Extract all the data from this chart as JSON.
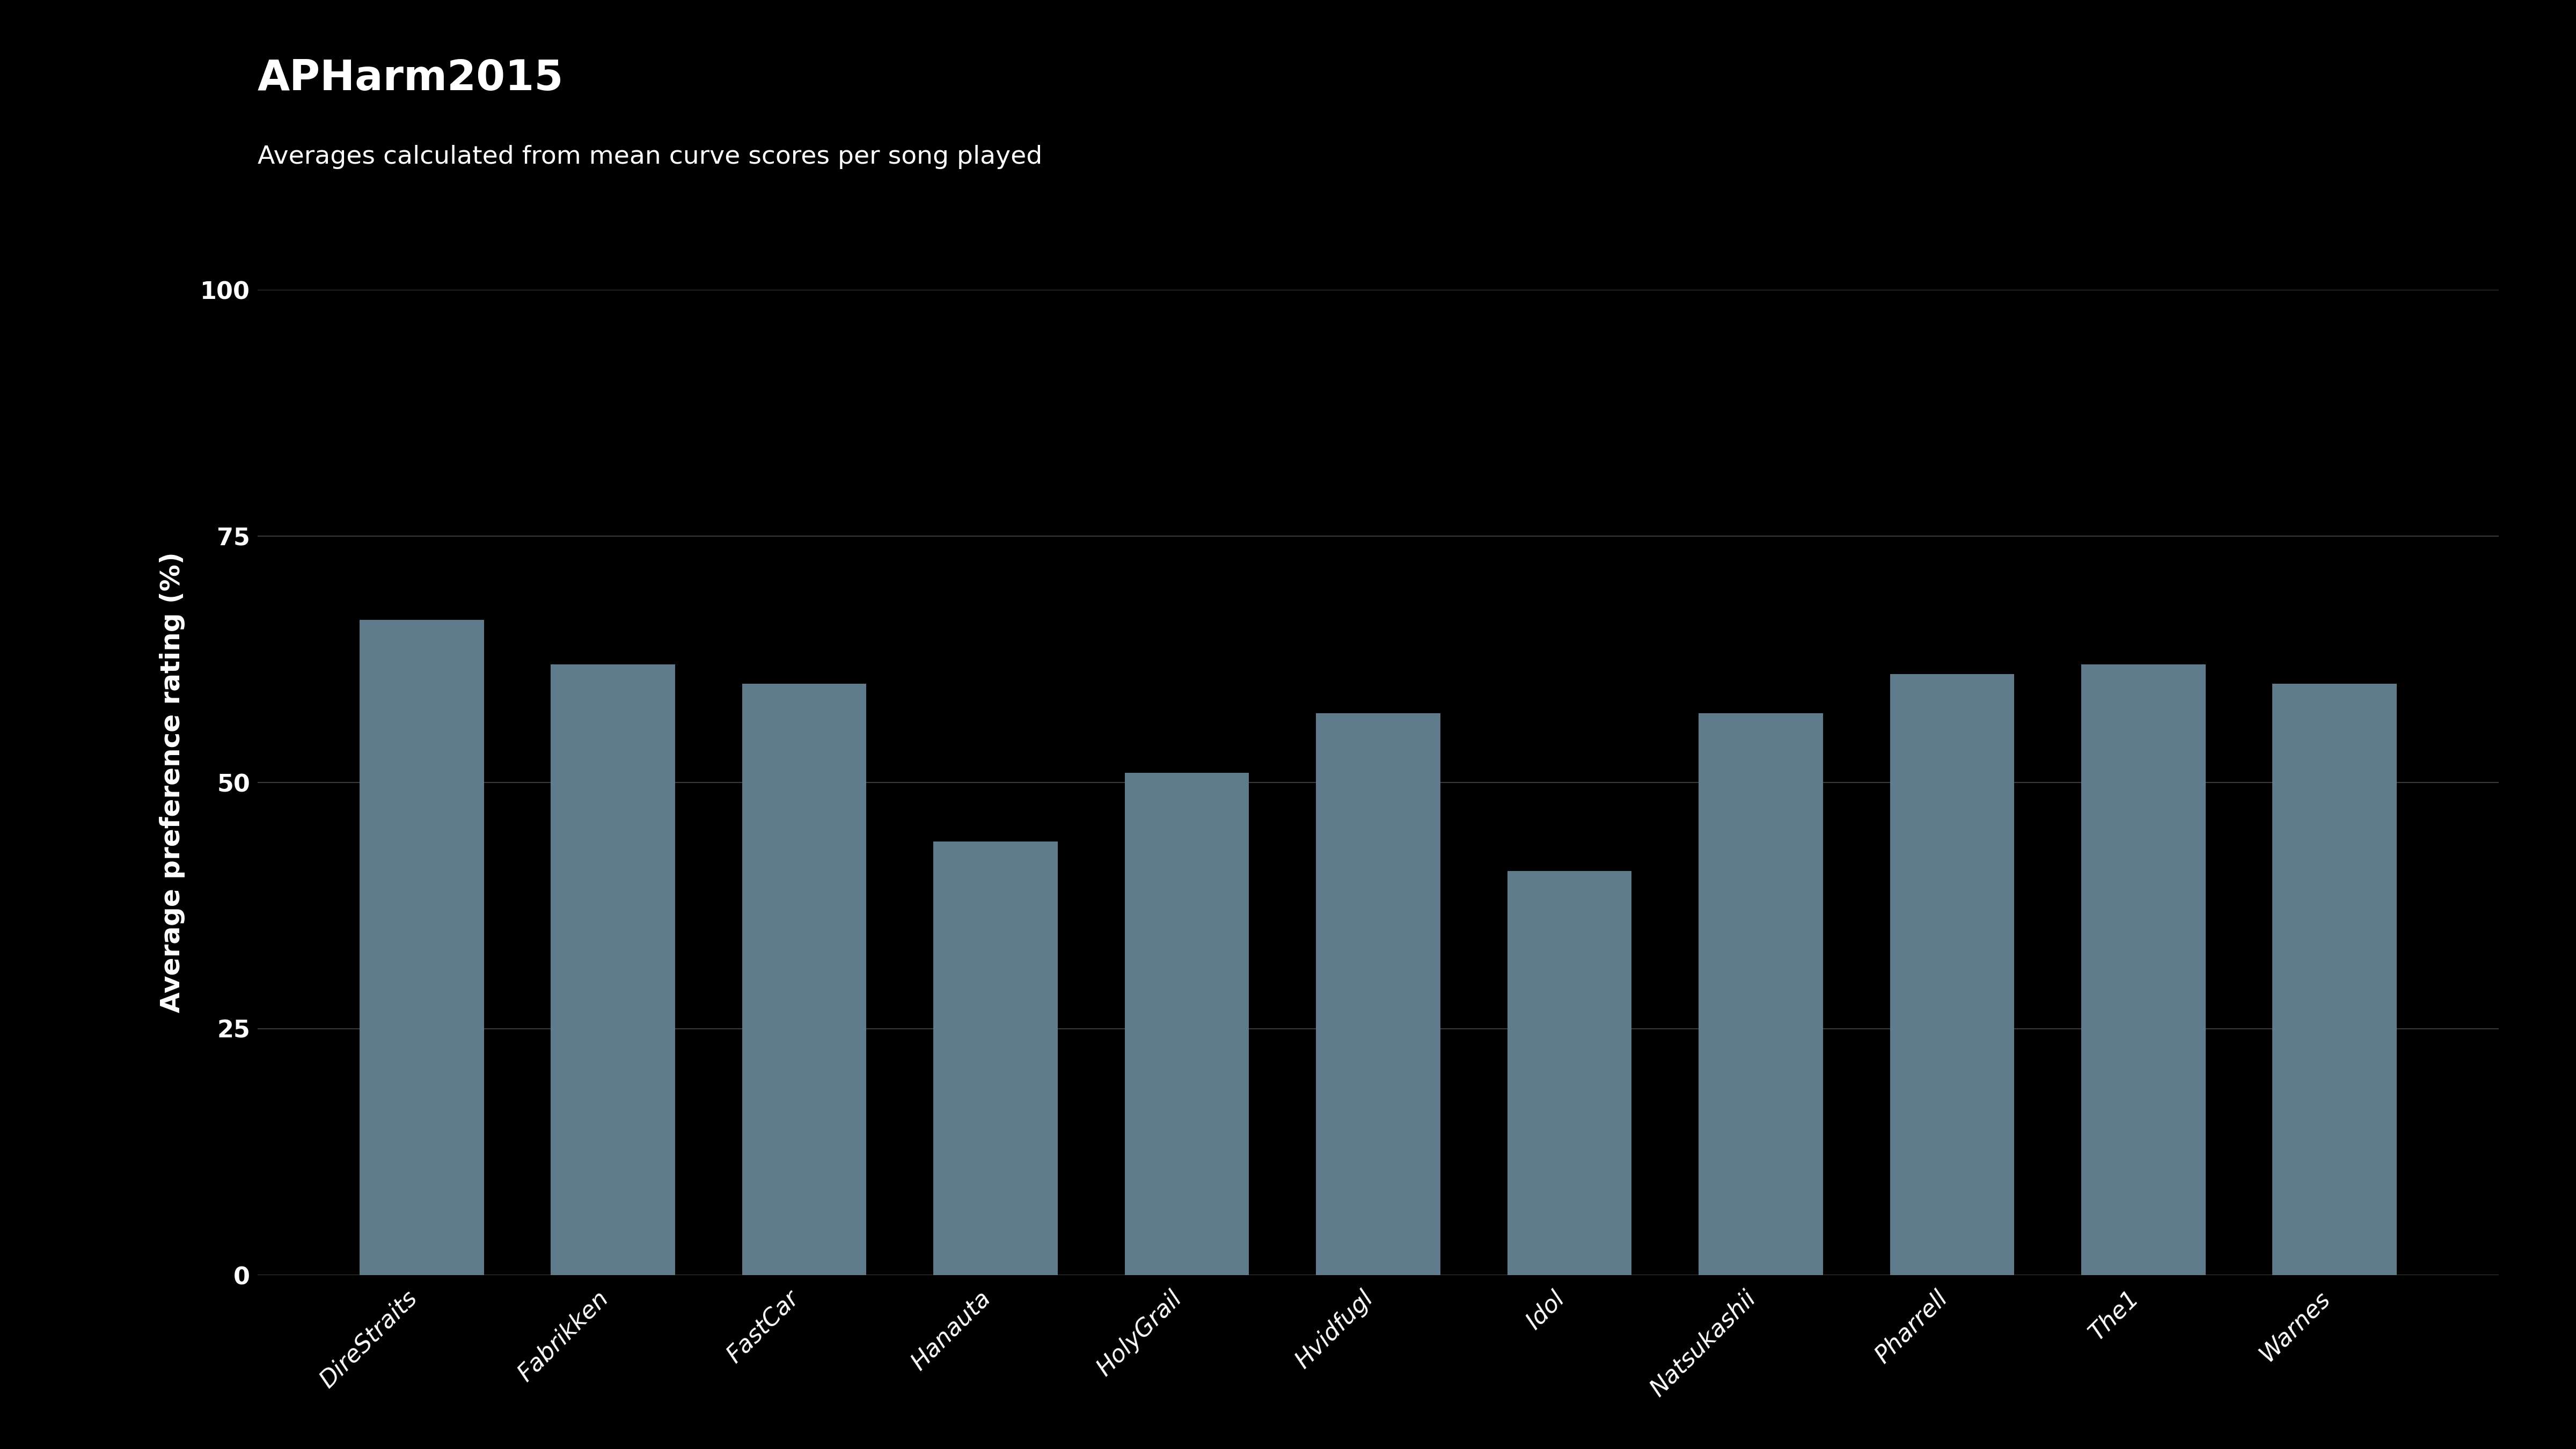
{
  "title": "APHarm2015",
  "subtitle": "Averages calculated from mean curve scores per song played",
  "categories": [
    "DireStraits",
    "Fabrikken",
    "FastCar",
    "Hanauta",
    "HolyGrail",
    "Hvidfugl",
    "Idol",
    "Natsukashii",
    "Pharrell",
    "The1",
    "Warnes"
  ],
  "values": [
    66.5,
    62.0,
    60.0,
    44.0,
    51.0,
    57.0,
    41.0,
    57.0,
    61.0,
    62.0,
    60.0
  ],
  "bar_color": "#607B8B",
  "background_color": "#000000",
  "text_color": "#ffffff",
  "grid_color": "#3a3a3a",
  "ylabel": "Average preference rating (%)",
  "ylim": [
    0,
    100
  ],
  "yticks": [
    0,
    25,
    50,
    75,
    100
  ],
  "title_fontsize": 56,
  "subtitle_fontsize": 34,
  "ylabel_fontsize": 36,
  "tick_fontsize": 32,
  "xtick_fontsize": 32
}
